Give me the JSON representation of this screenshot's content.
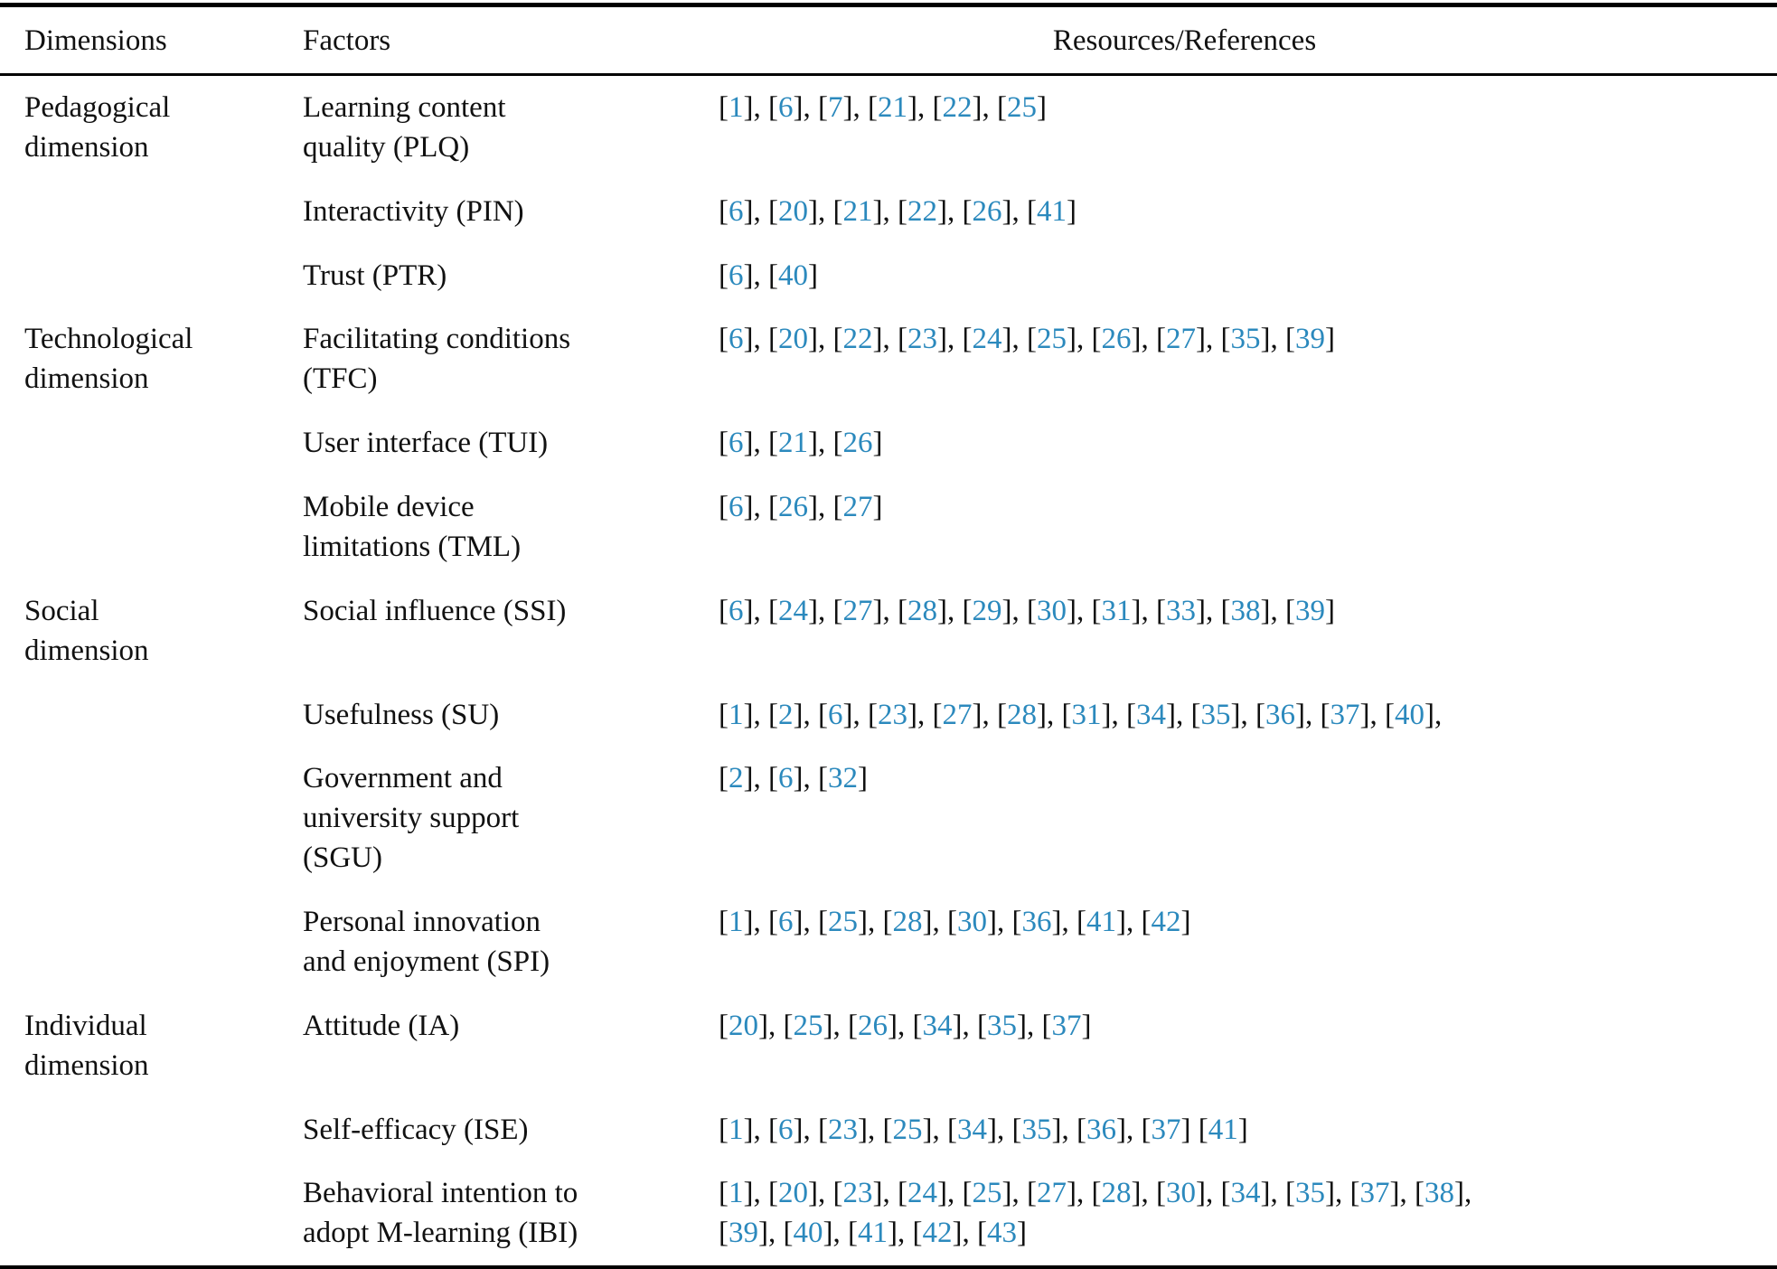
{
  "colors": {
    "reference_blue": "#2b89bd",
    "text_black": "#111111"
  },
  "table": {
    "columns": [
      "Dimensions",
      "Factors",
      "Resources/References"
    ],
    "rows": [
      {
        "dimension": "Pedagogical\ndimension",
        "factor": "Learning content\nquality (PLQ)",
        "refs": "[1], [6], [7], [21], [22], [25]"
      },
      {
        "dimension": "",
        "factor": "Interactivity (PIN)",
        "refs": "[6], [20], [21], [22], [26], [41]"
      },
      {
        "dimension": "",
        "factor": "Trust (PTR)",
        "refs": "[6], [40]"
      },
      {
        "dimension": "Technological\ndimension",
        "factor": "Facilitating conditions\n(TFC)",
        "refs": "[6], [20], [22], [23], [24], [25], [26], [27], [35], [39]"
      },
      {
        "dimension": "",
        "factor": "User interface (TUI)",
        "refs": "[6], [21], [26]"
      },
      {
        "dimension": "",
        "factor": "Mobile device\nlimitations (TML)",
        "refs": "[6], [26], [27]"
      },
      {
        "dimension": "Social\ndimension",
        "factor": "Social influence (SSI)",
        "refs": "[6], [24], [27], [28], [29], [30], [31], [33], [38], [39]"
      },
      {
        "dimension": "",
        "factor": "Usefulness (SU)",
        "refs": "[1], [2], [6], [23], [27], [28], [31], [34], [35], [36], [37], [40],"
      },
      {
        "dimension": "",
        "factor": "Government and\nuniversity support\n(SGU)",
        "refs": "[2], [6], [32]"
      },
      {
        "dimension": "",
        "factor": "Personal innovation\nand enjoyment (SPI)",
        "refs": "[1], [6], [25], [28], [30], [36], [41], [42]"
      },
      {
        "dimension": "Individual\ndimension",
        "factor": "Attitude (IA)",
        "refs": "[20], [25], [26], [34], [35], [37]"
      },
      {
        "dimension": "",
        "factor": "Self-efficacy (ISE)",
        "refs": "[1], [6], [23], [25], [34], [35], [36], [37] [41]"
      },
      {
        "dimension": "",
        "factor": "Behavioral intention to\nadopt M-learning (IBI)",
        "refs": "[1], [20], [23], [24], [25], [27], [28], [30], [34], [35], [37], [38],\n[39], [40], [41], [42], [43]"
      }
    ]
  }
}
